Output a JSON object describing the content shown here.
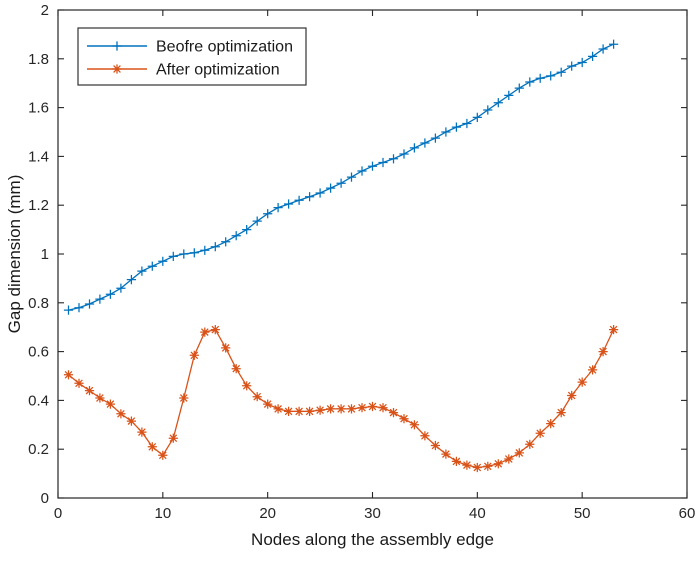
{
  "figure": {
    "background": "#ffffff",
    "axis_color": "#262626",
    "tick_label_color": "#262626",
    "label_color": "#1a1a1a"
  },
  "legend": {
    "position": "top-left",
    "border_color": "#333333",
    "background": "#ffffff",
    "entries": [
      {
        "label": "Beofre optimization",
        "color": "#0072BD",
        "marker": "plus"
      },
      {
        "label": "After optimization",
        "color": "#D95319",
        "marker": "asterisk"
      }
    ]
  },
  "chart_data": {
    "type": "line",
    "title": "",
    "xlabel": "Nodes along the assembly edge",
    "ylabel": "Gap dimension (mm)",
    "xlim": [
      0,
      60
    ],
    "ylim": [
      0,
      2
    ],
    "xticks": [
      0,
      10,
      20,
      30,
      40,
      50,
      60
    ],
    "xtick_labels": [
      "0",
      "10",
      "20",
      "30",
      "40",
      "50",
      "60"
    ],
    "yticks": [
      0,
      0.2,
      0.4,
      0.6,
      0.8,
      1,
      1.2,
      1.4,
      1.6,
      1.8,
      2
    ],
    "ytick_labels": [
      "0",
      "0.2",
      "0.4",
      "0.6",
      "0.8",
      "1",
      "1.2",
      "1.4",
      "1.6",
      "1.8",
      "2"
    ],
    "grid": false,
    "box": true,
    "legend_position": "top-left",
    "x_start": 1,
    "x_step": 1,
    "series": [
      {
        "name": "Beofre optimization",
        "color": "#0072BD",
        "marker": "plus",
        "x": [
          1,
          2,
          3,
          4,
          5,
          6,
          7,
          8,
          9,
          10,
          11,
          12,
          13,
          14,
          15,
          16,
          17,
          18,
          19,
          20,
          21,
          22,
          23,
          24,
          25,
          26,
          27,
          28,
          29,
          30,
          31,
          32,
          33,
          34,
          35,
          36,
          37,
          38,
          39,
          40,
          41,
          42,
          43,
          44,
          45,
          46,
          47,
          48,
          49,
          50,
          51,
          52,
          53
        ],
        "values": [
          0.77,
          0.78,
          0.795,
          0.815,
          0.835,
          0.86,
          0.895,
          0.93,
          0.95,
          0.97,
          0.99,
          1.0,
          1.005,
          1.015,
          1.03,
          1.05,
          1.075,
          1.1,
          1.135,
          1.165,
          1.19,
          1.205,
          1.22,
          1.235,
          1.25,
          1.27,
          1.29,
          1.315,
          1.34,
          1.36,
          1.375,
          1.39,
          1.41,
          1.435,
          1.455,
          1.475,
          1.5,
          1.52,
          1.535,
          1.56,
          1.59,
          1.62,
          1.65,
          1.68,
          1.705,
          1.72,
          1.73,
          1.745,
          1.77,
          1.785,
          1.81,
          1.84,
          1.86
        ]
      },
      {
        "name": "After optimization",
        "color": "#D95319",
        "marker": "asterisk",
        "x": [
          1,
          2,
          3,
          4,
          5,
          6,
          7,
          8,
          9,
          10,
          11,
          12,
          13,
          14,
          15,
          16,
          17,
          18,
          19,
          20,
          21,
          22,
          23,
          24,
          25,
          26,
          27,
          28,
          29,
          30,
          31,
          32,
          33,
          34,
          35,
          36,
          37,
          38,
          39,
          40,
          41,
          42,
          43,
          44,
          45,
          46,
          47,
          48,
          49,
          50,
          51,
          52,
          53
        ],
        "values": [
          0.505,
          0.47,
          0.44,
          0.41,
          0.385,
          0.345,
          0.315,
          0.27,
          0.21,
          0.175,
          0.245,
          0.41,
          0.585,
          0.68,
          0.69,
          0.615,
          0.53,
          0.46,
          0.415,
          0.385,
          0.365,
          0.355,
          0.355,
          0.355,
          0.36,
          0.365,
          0.365,
          0.365,
          0.37,
          0.375,
          0.37,
          0.35,
          0.325,
          0.3,
          0.255,
          0.215,
          0.18,
          0.15,
          0.135,
          0.125,
          0.13,
          0.14,
          0.16,
          0.185,
          0.22,
          0.265,
          0.305,
          0.35,
          0.42,
          0.475,
          0.525,
          0.6,
          0.69
        ]
      }
    ]
  }
}
